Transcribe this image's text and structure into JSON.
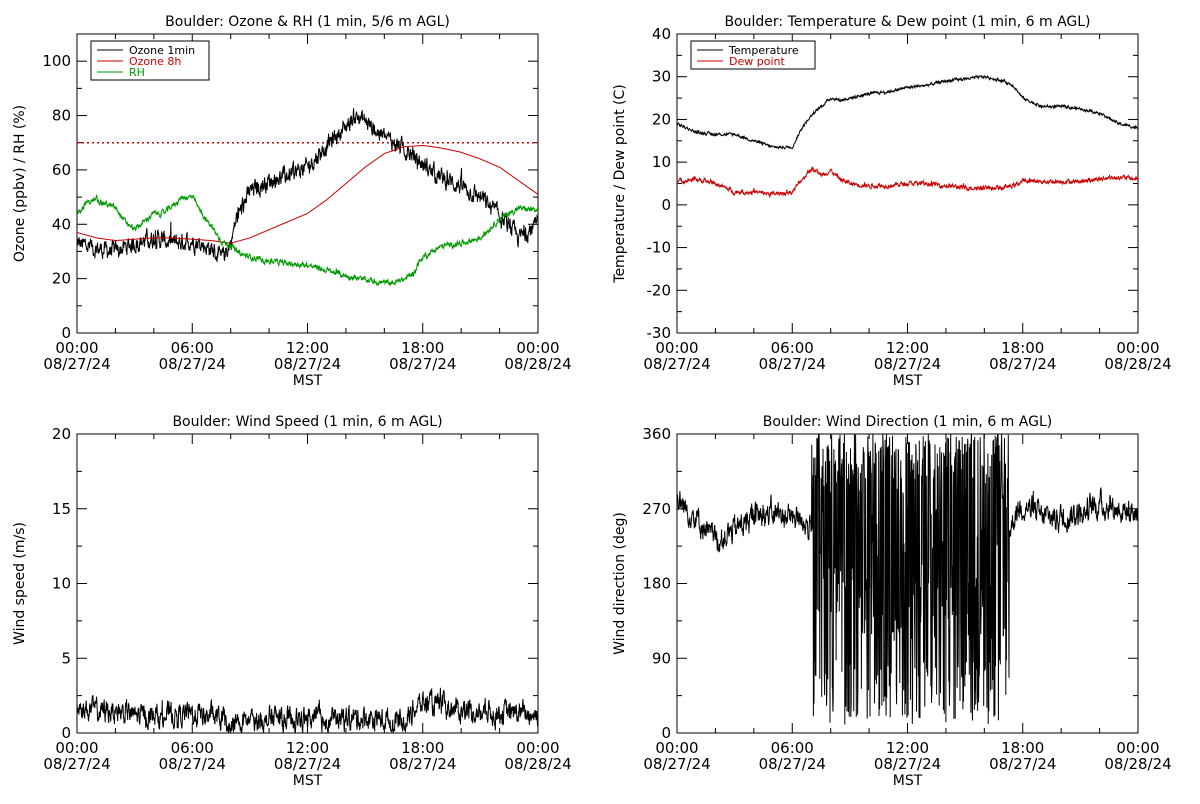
{
  "chart_data": [
    {
      "type": "line",
      "title": "Boulder: Ozone & RH (1 min, 5/6 m AGL)",
      "ylabel": "Ozone (ppbv) / RH (%)",
      "xlabel": "MST",
      "ylim": [
        0,
        110
      ],
      "yticks": [
        0,
        20,
        40,
        60,
        80,
        100
      ],
      "xlim": [
        0,
        24
      ],
      "xticks": [
        {
          "time": "00:00",
          "date": "08/27/24"
        },
        {
          "time": "06:00",
          "date": "08/27/24"
        },
        {
          "time": "12:00",
          "date": "08/27/24"
        },
        {
          "time": "18:00",
          "date": "08/27/24"
        },
        {
          "time": "00:00",
          "date": "08/28/24"
        }
      ],
      "legend_position": "top-left",
      "reference_line": {
        "y": 70,
        "color": "#cc0000",
        "style": "dotted"
      },
      "series": [
        {
          "name": "Ozone 1min",
          "color": "#000000",
          "noise": 2.5,
          "x": [
            0,
            1,
            2,
            3,
            4,
            5,
            6,
            7,
            7.5,
            8,
            8.3,
            9,
            10,
            11,
            12,
            13,
            14,
            14.5,
            15,
            16,
            17,
            18,
            19,
            20,
            21,
            22,
            23,
            24
          ],
          "y": [
            33,
            31,
            30,
            33,
            35,
            33,
            34,
            31,
            27,
            33,
            42,
            52,
            56,
            58,
            61,
            69,
            76,
            80,
            78,
            72,
            68,
            62,
            57,
            54,
            50,
            43,
            35,
            40
          ]
        },
        {
          "name": "Ozone 8h",
          "color": "#cc0000",
          "noise": 0,
          "x": [
            0,
            1,
            2,
            3,
            4,
            5,
            6,
            7,
            8,
            9,
            10,
            11,
            12,
            13,
            14,
            15,
            16,
            17,
            18,
            19,
            20,
            21,
            22,
            23,
            24
          ],
          "y": [
            37,
            35,
            34,
            34.5,
            35,
            35,
            34.5,
            34,
            33,
            35,
            38,
            41,
            44,
            49,
            55,
            61,
            66,
            68.5,
            69,
            68,
            66.5,
            64,
            61,
            56,
            51
          ]
        },
        {
          "name": "RH",
          "color": "#009900",
          "noise": 0.8,
          "x": [
            0,
            0.5,
            1,
            2,
            2.5,
            3,
            4,
            4.5,
            5,
            5.5,
            6,
            6.5,
            7,
            7.5,
            8,
            8.5,
            9,
            10,
            11,
            12,
            13,
            14,
            15,
            16,
            16.5,
            17,
            17.5,
            18,
            19,
            20,
            21,
            22,
            23,
            24
          ],
          "y": [
            44,
            48,
            49,
            46,
            41,
            38,
            44,
            44,
            47,
            50,
            50,
            44,
            39,
            34,
            32,
            29,
            28,
            26.5,
            25.5,
            25,
            23,
            21,
            19.5,
            18.5,
            18.5,
            19.5,
            22,
            28,
            32,
            33,
            35,
            42,
            46,
            45
          ]
        }
      ]
    },
    {
      "type": "line",
      "title": "Boulder: Temperature & Dew point (1 min, 6 m AGL)",
      "ylabel": "Temperature / Dew point (C)",
      "xlabel": "MST",
      "ylim": [
        -30,
        40
      ],
      "yticks": [
        -30,
        -20,
        -10,
        0,
        10,
        20,
        30,
        40
      ],
      "xlim": [
        0,
        24
      ],
      "xticks": [
        {
          "time": "00:00",
          "date": "08/27/24"
        },
        {
          "time": "06:00",
          "date": "08/27/24"
        },
        {
          "time": "12:00",
          "date": "08/27/24"
        },
        {
          "time": "18:00",
          "date": "08/27/24"
        },
        {
          "time": "00:00",
          "date": "08/28/24"
        }
      ],
      "legend_position": "top-left",
      "series": [
        {
          "name": "Temperature",
          "color": "#000000",
          "noise": 0.25,
          "x": [
            0,
            1,
            2,
            3,
            4,
            5,
            6,
            6.5,
            7,
            7.5,
            8,
            8.5,
            9,
            10,
            11,
            12,
            13,
            14,
            15,
            16,
            17,
            17.5,
            18,
            19,
            20,
            21,
            22,
            23,
            24
          ],
          "y": [
            19,
            17,
            16.5,
            16.5,
            15,
            13.5,
            13.5,
            18,
            21,
            23,
            25,
            24.5,
            25,
            26,
            26.5,
            27.5,
            28,
            29,
            29.5,
            30,
            29,
            28,
            25,
            23,
            23,
            22.5,
            21.5,
            19,
            18
          ]
        },
        {
          "name": "Dew point",
          "color": "#cc0000",
          "noise": 0.4,
          "x": [
            0,
            1,
            2,
            3,
            4,
            5,
            6,
            6.5,
            7,
            7.5,
            8,
            8.5,
            9,
            10,
            11,
            12,
            13,
            14,
            15,
            16,
            17,
            17.5,
            18,
            19,
            20,
            21,
            22,
            23,
            24
          ],
          "y": [
            5.5,
            6,
            5,
            3,
            3,
            2.5,
            3,
            6,
            8.5,
            7,
            8,
            6,
            5,
            4.5,
            4.5,
            5,
            5,
            4.5,
            4,
            4,
            4,
            4.5,
            5.5,
            5.5,
            5.5,
            5.5,
            6,
            6.5,
            6
          ]
        }
      ]
    },
    {
      "type": "line",
      "title": "Boulder: Wind Speed (1 min, 6 m AGL)",
      "ylabel": "Wind speed (m/s)",
      "xlabel": "MST",
      "ylim": [
        0,
        20
      ],
      "yticks": [
        0,
        5,
        10,
        15,
        20
      ],
      "xlim": [
        0,
        24
      ],
      "xticks": [
        {
          "time": "00:00",
          "date": "08/27/24"
        },
        {
          "time": "06:00",
          "date": "08/27/24"
        },
        {
          "time": "12:00",
          "date": "08/27/24"
        },
        {
          "time": "18:00",
          "date": "08/27/24"
        },
        {
          "time": "00:00",
          "date": "08/28/24"
        }
      ],
      "series": [
        {
          "name": "",
          "color": "#000000",
          "noise": 0.6,
          "floor": 0,
          "x": [
            0,
            1,
            2,
            3,
            4,
            5,
            6,
            7,
            8,
            9,
            10,
            11,
            12,
            13,
            14,
            15,
            16,
            17,
            17.5,
            18,
            19,
            20,
            21,
            22,
            23,
            24
          ],
          "y": [
            1.6,
            1.5,
            1.5,
            1.2,
            1.1,
            1.2,
            1.3,
            1.1,
            0.6,
            0.8,
            1.0,
            1.0,
            1.0,
            0.9,
            1.0,
            1.0,
            0.9,
            0.7,
            1.6,
            2.0,
            1.8,
            1.5,
            1.4,
            1.4,
            1.3,
            1.3
          ]
        }
      ]
    },
    {
      "type": "line",
      "title": "Boulder: Wind Direction (1 min, 6 m AGL)",
      "ylabel": "Wind direction (deg)",
      "xlabel": "MST",
      "ylim": [
        0,
        360
      ],
      "yticks": [
        0,
        90,
        180,
        270,
        360
      ],
      "xlim": [
        0,
        24
      ],
      "xticks": [
        {
          "time": "00:00",
          "date": "08/27/24"
        },
        {
          "time": "06:00",
          "date": "08/27/24"
        },
        {
          "time": "12:00",
          "date": "08/27/24"
        },
        {
          "time": "18:00",
          "date": "08/27/24"
        },
        {
          "time": "00:00",
          "date": "08/28/24"
        }
      ],
      "series": [
        {
          "name": "",
          "color": "#000000",
          "noise": 12,
          "floor": 0,
          "ceiling": 360,
          "variable_range": [
            7,
            17.3
          ],
          "x": [
            0,
            1,
            2,
            3,
            4,
            5,
            6,
            6.5,
            7,
            17.3,
            17.6,
            18,
            19,
            20,
            21,
            22,
            23,
            24
          ],
          "y": [
            280,
            260,
            230,
            245,
            260,
            265,
            260,
            260,
            240,
            240,
            265,
            275,
            260,
            260,
            265,
            275,
            270,
            265
          ]
        }
      ]
    }
  ]
}
